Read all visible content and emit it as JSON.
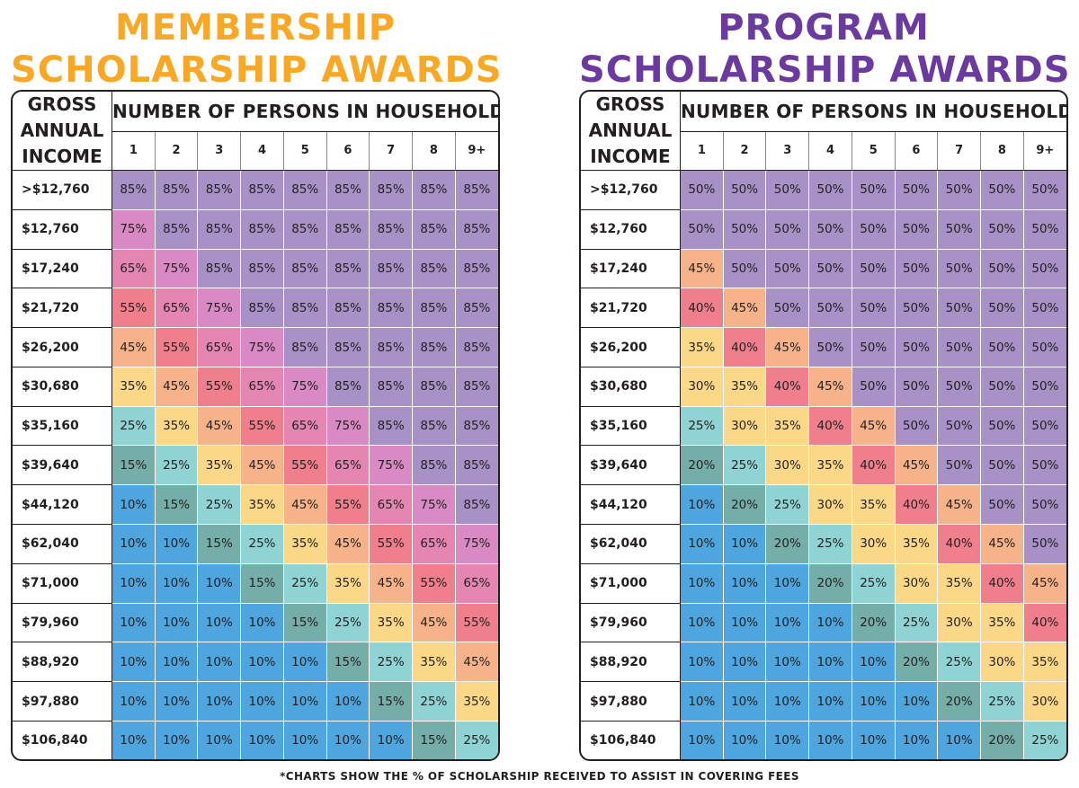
{
  "colors": {
    "membership_title": "#f9a825",
    "program_title": "#6a3a9e",
    "p85": "#a791c6",
    "p75": "#d989c3",
    "p65": "#e585b1",
    "p55": "#ef7f8c",
    "p45": "#f6b38a",
    "p35": "#fbd888",
    "p25": "#8fd3d4",
    "p15": "#75ada8",
    "p10": "#4fa5de",
    "p50": "#a791c6",
    "p40": "#ef7f8c",
    "p30": "#fbd888",
    "p20": "#75ada8"
  },
  "header": {
    "gross_lines": [
      "GROSS",
      "ANNUAL",
      "INCOME"
    ],
    "persons_label": "NUMBER OF PERSONS IN HOUSEHOLD",
    "household_sizes": [
      "1",
      "2",
      "3",
      "4",
      "5",
      "6",
      "7",
      "8",
      "9+"
    ]
  },
  "incomes": [
    ">$12,760",
    "$12,760",
    "$17,240",
    "$21,720",
    "$26,200",
    "$30,680",
    "$35,160",
    "$39,640",
    "$44,120",
    "$62,040",
    "$71,000",
    "$79,960",
    "$88,920",
    "$97,880",
    "$106,840"
  ],
  "membership": {
    "title_lines": [
      "MEMBERSHIP",
      "SCHOLARSHIP AWARDS"
    ],
    "rows": [
      [
        "85%",
        "85%",
        "85%",
        "85%",
        "85%",
        "85%",
        "85%",
        "85%",
        "85%"
      ],
      [
        "75%",
        "85%",
        "85%",
        "85%",
        "85%",
        "85%",
        "85%",
        "85%",
        "85%"
      ],
      [
        "65%",
        "75%",
        "85%",
        "85%",
        "85%",
        "85%",
        "85%",
        "85%",
        "85%"
      ],
      [
        "55%",
        "65%",
        "75%",
        "85%",
        "85%",
        "85%",
        "85%",
        "85%",
        "85%"
      ],
      [
        "45%",
        "55%",
        "65%",
        "75%",
        "85%",
        "85%",
        "85%",
        "85%",
        "85%"
      ],
      [
        "35%",
        "45%",
        "55%",
        "65%",
        "75%",
        "85%",
        "85%",
        "85%",
        "85%"
      ],
      [
        "25%",
        "35%",
        "45%",
        "55%",
        "65%",
        "75%",
        "85%",
        "85%",
        "85%"
      ],
      [
        "15%",
        "25%",
        "35%",
        "45%",
        "55%",
        "65%",
        "75%",
        "85%",
        "85%"
      ],
      [
        "10%",
        "15%",
        "25%",
        "35%",
        "45%",
        "55%",
        "65%",
        "75%",
        "85%"
      ],
      [
        "10%",
        "10%",
        "15%",
        "25%",
        "35%",
        "45%",
        "55%",
        "65%",
        "75%"
      ],
      [
        "10%",
        "10%",
        "10%",
        "15%",
        "25%",
        "35%",
        "45%",
        "55%",
        "65%"
      ],
      [
        "10%",
        "10%",
        "10%",
        "10%",
        "15%",
        "25%",
        "35%",
        "45%",
        "55%"
      ],
      [
        "10%",
        "10%",
        "10%",
        "10%",
        "10%",
        "15%",
        "25%",
        "35%",
        "45%"
      ],
      [
        "10%",
        "10%",
        "10%",
        "10%",
        "10%",
        "10%",
        "15%",
        "25%",
        "35%"
      ],
      [
        "10%",
        "10%",
        "10%",
        "10%",
        "10%",
        "10%",
        "10%",
        "15%",
        "25%"
      ]
    ]
  },
  "program": {
    "title_lines": [
      "PROGRAM",
      "SCHOLARSHIP AWARDS"
    ],
    "rows": [
      [
        "50%",
        "50%",
        "50%",
        "50%",
        "50%",
        "50%",
        "50%",
        "50%",
        "50%"
      ],
      [
        "50%",
        "50%",
        "50%",
        "50%",
        "50%",
        "50%",
        "50%",
        "50%",
        "50%"
      ],
      [
        "45%",
        "50%",
        "50%",
        "50%",
        "50%",
        "50%",
        "50%",
        "50%",
        "50%"
      ],
      [
        "40%",
        "45%",
        "50%",
        "50%",
        "50%",
        "50%",
        "50%",
        "50%",
        "50%"
      ],
      [
        "35%",
        "40%",
        "45%",
        "50%",
        "50%",
        "50%",
        "50%",
        "50%",
        "50%"
      ],
      [
        "30%",
        "35%",
        "40%",
        "45%",
        "50%",
        "50%",
        "50%",
        "50%",
        "50%"
      ],
      [
        "25%",
        "30%",
        "35%",
        "40%",
        "45%",
        "50%",
        "50%",
        "50%",
        "50%"
      ],
      [
        "20%",
        "25%",
        "30%",
        "35%",
        "40%",
        "45%",
        "50%",
        "50%",
        "50%"
      ],
      [
        "10%",
        "20%",
        "25%",
        "30%",
        "35%",
        "40%",
        "45%",
        "50%",
        "50%"
      ],
      [
        "10%",
        "10%",
        "20%",
        "25%",
        "30%",
        "35%",
        "40%",
        "45%",
        "50%"
      ],
      [
        "10%",
        "10%",
        "10%",
        "20%",
        "25%",
        "30%",
        "35%",
        "40%",
        "45%"
      ],
      [
        "10%",
        "10%",
        "10%",
        "10%",
        "20%",
        "25%",
        "30%",
        "35%",
        "40%"
      ],
      [
        "10%",
        "10%",
        "10%",
        "10%",
        "10%",
        "20%",
        "25%",
        "30%",
        "35%"
      ],
      [
        "10%",
        "10%",
        "10%",
        "10%",
        "10%",
        "10%",
        "20%",
        "25%",
        "30%"
      ],
      [
        "10%",
        "10%",
        "10%",
        "10%",
        "10%",
        "10%",
        "10%",
        "20%",
        "25%"
      ]
    ]
  },
  "footnote": "*CHARTS SHOW THE % OF SCHOLARSHIP RECEIVED TO ASSIST IN COVERING FEES"
}
